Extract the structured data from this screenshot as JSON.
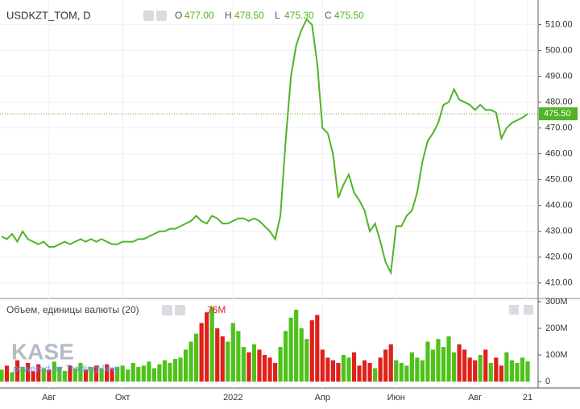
{
  "chart_data": {
    "type": "line",
    "title": "USDKZT_TOM, D",
    "ohlc": [
      {
        "label": "O",
        "value": "477.00"
      },
      {
        "label": "H",
        "value": "478.50"
      },
      {
        "label": "L",
        "value": "475.30"
      },
      {
        "label": "C",
        "value": "475.50"
      }
    ],
    "categories": [
      null,
      null,
      null,
      null,
      null,
      null,
      null,
      null,
      null,
      "Авг",
      null,
      null,
      null,
      null,
      null,
      null,
      null,
      null,
      null,
      null,
      null,
      null,
      null,
      "Окт",
      null,
      null,
      null,
      null,
      null,
      null,
      null,
      null,
      null,
      null,
      null,
      null,
      null,
      null,
      null,
      null,
      null,
      null,
      null,
      null,
      "2022",
      null,
      null,
      null,
      null,
      null,
      null,
      null,
      null,
      null,
      null,
      null,
      null,
      null,
      null,
      null,
      null,
      "Апр",
      null,
      null,
      null,
      null,
      null,
      null,
      null,
      null,
      null,
      null,
      null,
      null,
      null,
      "Июн",
      null,
      null,
      null,
      null,
      null,
      null,
      null,
      null,
      null,
      null,
      null,
      null,
      null,
      null,
      "Авг",
      null,
      null,
      null,
      null,
      null,
      null,
      null,
      null,
      null,
      "21"
    ],
    "series": [
      {
        "name": "USDKZT_TOM",
        "color": "#52b326",
        "values": [
          428,
          427,
          429,
          426,
          430,
          427,
          426,
          425,
          426,
          424,
          424,
          425,
          426,
          425,
          426,
          427,
          426,
          427,
          426,
          427,
          426,
          425,
          425,
          426,
          426,
          426,
          427,
          427,
          428,
          429,
          430,
          430,
          431,
          431,
          432,
          433,
          434,
          436,
          434,
          433,
          436,
          435,
          433,
          433,
          434,
          435,
          435,
          434,
          435,
          434,
          432,
          430,
          427,
          436,
          465,
          490,
          502,
          508,
          512,
          510,
          495,
          470,
          468,
          460,
          443,
          448,
          452,
          445,
          442,
          438,
          430,
          433,
          426,
          418,
          414,
          432,
          432,
          436,
          438,
          445,
          457,
          465,
          468,
          472,
          479,
          480,
          485,
          481,
          480,
          479,
          477,
          479,
          477,
          477,
          476,
          466,
          470,
          472,
          473,
          474,
          475.5
        ]
      }
    ],
    "ylim": [
      404,
      518
    ],
    "yticks": [
      {
        "value": 410,
        "label": "410.00"
      },
      {
        "value": 420,
        "label": "420.00"
      },
      {
        "value": 430,
        "label": "430.00"
      },
      {
        "value": 440,
        "label": "440.00"
      },
      {
        "value": 450,
        "label": "450.00"
      },
      {
        "value": 460,
        "label": "460.00"
      },
      {
        "value": 470,
        "label": "470.00"
      },
      {
        "value": 480,
        "label": "480.00"
      },
      {
        "value": 490,
        "label": "490.00"
      },
      {
        "value": 500,
        "label": "500.00"
      },
      {
        "value": 510,
        "label": "510.00"
      }
    ],
    "last_price": {
      "value": 475.5,
      "label": "475.50"
    },
    "grid": true,
    "volume": {
      "title": "Объем, единицы валюты (20)",
      "current_label": "76M",
      "up_color": "#4ec21a",
      "down_color": "#e0201a",
      "values": [
        45,
        60,
        35,
        80,
        55,
        70,
        40,
        65,
        50,
        45,
        75,
        55,
        40,
        60,
        50,
        70,
        45,
        55,
        60,
        50,
        65,
        50,
        55,
        60,
        45,
        70,
        55,
        60,
        75,
        50,
        65,
        80,
        70,
        85,
        90,
        120,
        150,
        180,
        220,
        260,
        280,
        200,
        170,
        150,
        220,
        190,
        130,
        110,
        140,
        120,
        100,
        90,
        70,
        130,
        190,
        240,
        270,
        200,
        160,
        230,
        250,
        120,
        90,
        80,
        70,
        100,
        90,
        110,
        60,
        80,
        70,
        50,
        90,
        120,
        140,
        80,
        70,
        60,
        110,
        90,
        80,
        150,
        120,
        160,
        130,
        170,
        110,
        140,
        120,
        90,
        80,
        100,
        120,
        70,
        90,
        60,
        110,
        80,
        70,
        90,
        76
      ],
      "ylim": [
        0,
        306
      ],
      "yticks": [
        {
          "value": 0,
          "label": "0"
        },
        {
          "value": 100,
          "label": "100M"
        },
        {
          "value": 200,
          "label": "200M"
        },
        {
          "value": 300,
          "label": "300M"
        }
      ]
    },
    "watermark": {
      "logo": "KASE",
      "text": "powered by TradingView"
    }
  }
}
